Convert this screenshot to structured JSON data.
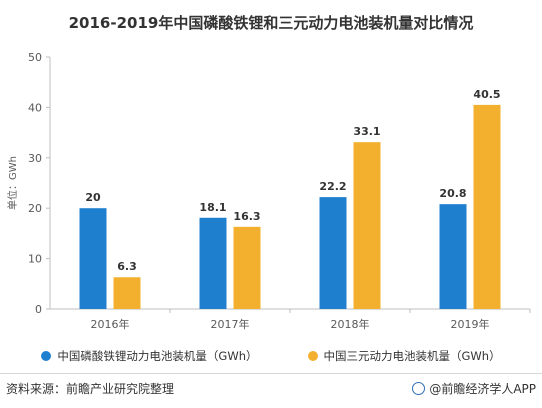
{
  "title": "2016-2019年中国磷酸铁锂和三元动力电池装机量对比情况",
  "source": "资料来源：前瞻产业研究院整理",
  "brand": "@前瞻经济学人APP",
  "colors": {
    "lfp": "#1f7fcf",
    "ncm": "#f3b02e"
  },
  "chart_data": {
    "type": "bar",
    "categories": [
      "2016年",
      "2017年",
      "2018年",
      "2019年"
    ],
    "series": [
      {
        "name": "中国磷酸铁锂动力电池装机量（GWh）",
        "values": [
          20,
          18.1,
          22.2,
          20.8
        ],
        "labels": [
          "20",
          "18.1",
          "22.2",
          "20.8"
        ]
      },
      {
        "name": "中国三元动力电池装机量（GWh）",
        "values": [
          6.3,
          16.3,
          33.1,
          40.5
        ],
        "labels": [
          "6.3",
          "16.3",
          "33.1",
          "40.5"
        ]
      }
    ],
    "ylabel": "单位：GWh",
    "ylim": [
      0,
      50
    ],
    "yticks": [
      0,
      10,
      20,
      30,
      40,
      50
    ],
    "grid": false,
    "legend_position": "bottom"
  }
}
